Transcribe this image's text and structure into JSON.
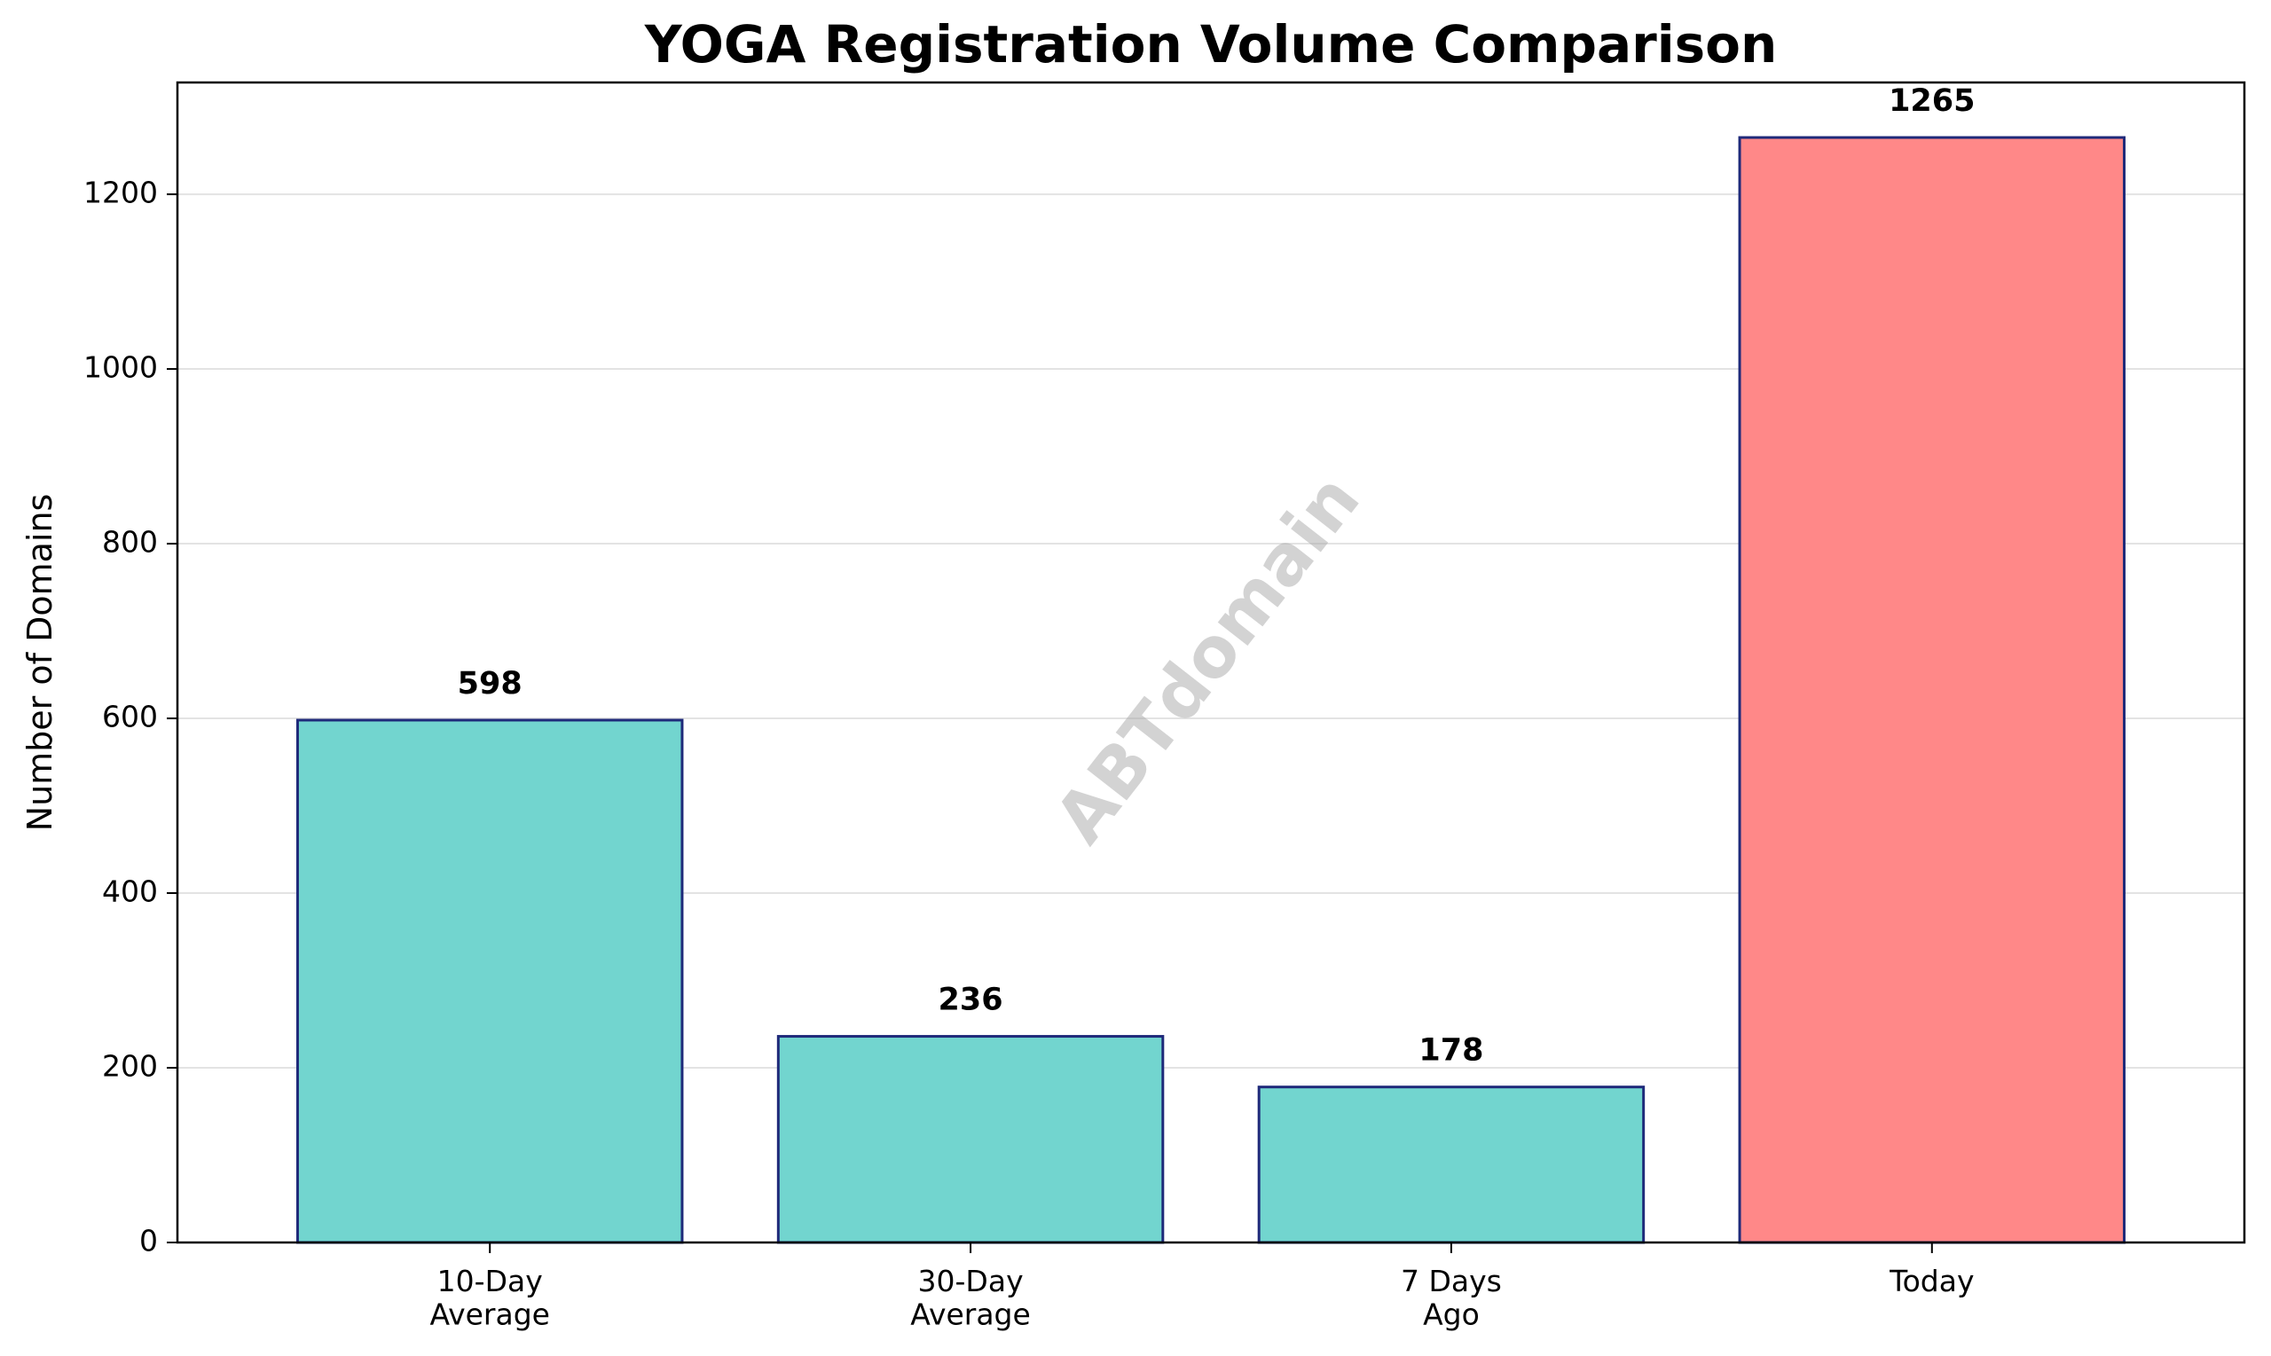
{
  "chart_data": {
    "type": "bar",
    "title": "YOGA Registration Volume Comparison",
    "xlabel": "",
    "ylabel": "Number of Domains",
    "categories": [
      [
        "10-Day",
        "Average"
      ],
      [
        "30-Day",
        "Average"
      ],
      [
        "7 Days",
        "Ago"
      ],
      [
        "Today"
      ]
    ],
    "values": [
      598,
      236,
      178,
      1265
    ],
    "data_labels": [
      "598",
      "236",
      "178",
      "1265"
    ],
    "bar_colors": [
      "#72d5cf",
      "#72d5cf",
      "#72d5cf",
      "#ff8888"
    ],
    "bar_edge_color": "#1f2a7a",
    "ylim": [
      0,
      1328
    ],
    "yticks": [
      0,
      200,
      400,
      600,
      800,
      1000,
      1200
    ],
    "grid": "y",
    "grid_color": "#e3e3e3",
    "watermark": "ABTdomain"
  }
}
